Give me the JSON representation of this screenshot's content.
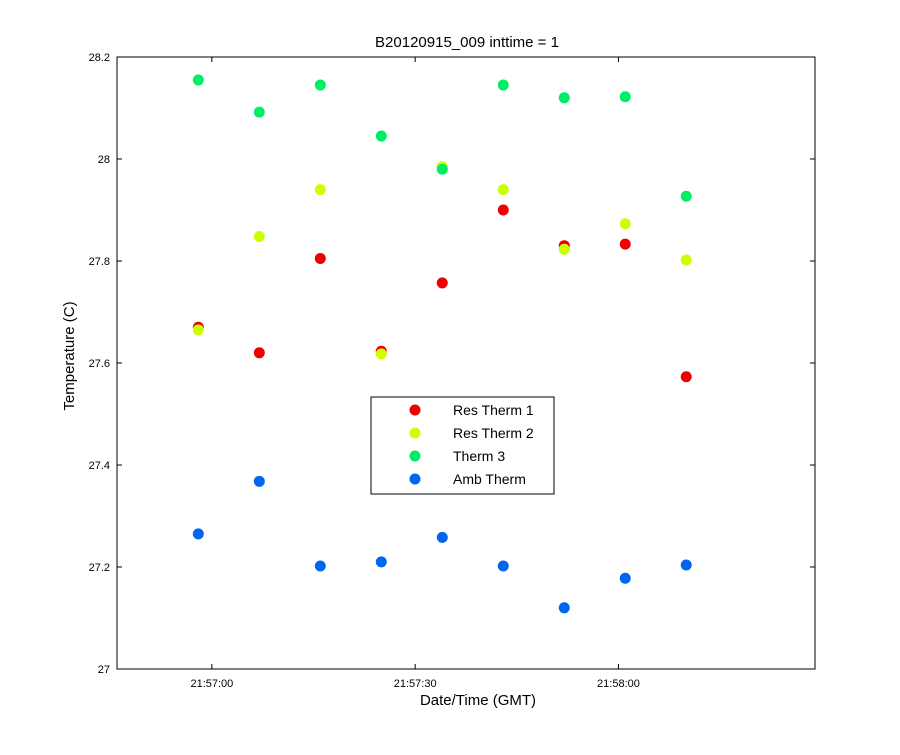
{
  "chart_data": {
    "type": "scatter",
    "title": "B20120915_009 inttime = 1",
    "xlabel": "Date/Time (GMT)",
    "ylabel": "Temperature (C)",
    "x_axis_type": "time",
    "xlim": [
      "21:56:46",
      "21:58:29"
    ],
    "ylim": [
      27.0,
      28.2
    ],
    "xticks": [
      "21:57:00",
      "21:57:30",
      "21:58:00"
    ],
    "yticks": [
      "27",
      "27.2",
      "27.4",
      "27.6",
      "27.8",
      "28",
      "28.2"
    ],
    "grid": false,
    "legend_position": "center",
    "x": [
      "21:56:58",
      "21:57:07",
      "21:57:16",
      "21:57:25",
      "21:57:34",
      "21:57:43",
      "21:57:52",
      "21:58:01",
      "21:58:10"
    ],
    "series": [
      {
        "name": "Res Therm 1",
        "color": "#ee0000",
        "values": [
          27.67,
          27.62,
          27.805,
          27.623,
          27.757,
          27.9,
          27.83,
          27.833,
          27.573
        ]
      },
      {
        "name": "Res Therm 2",
        "color": "#ccff00",
        "values": [
          27.665,
          27.848,
          27.94,
          27.618,
          27.985,
          27.94,
          27.823,
          27.873,
          27.802
        ]
      },
      {
        "name": "Therm 3",
        "color": "#00ee66",
        "values": [
          28.155,
          28.092,
          28.145,
          28.045,
          27.98,
          28.145,
          28.12,
          28.122,
          27.927
        ]
      },
      {
        "name": "Amb Therm",
        "color": "#0066ee",
        "values": [
          27.265,
          27.368,
          27.202,
          27.21,
          27.258,
          27.202,
          27.12,
          27.178,
          27.204
        ]
      }
    ]
  }
}
